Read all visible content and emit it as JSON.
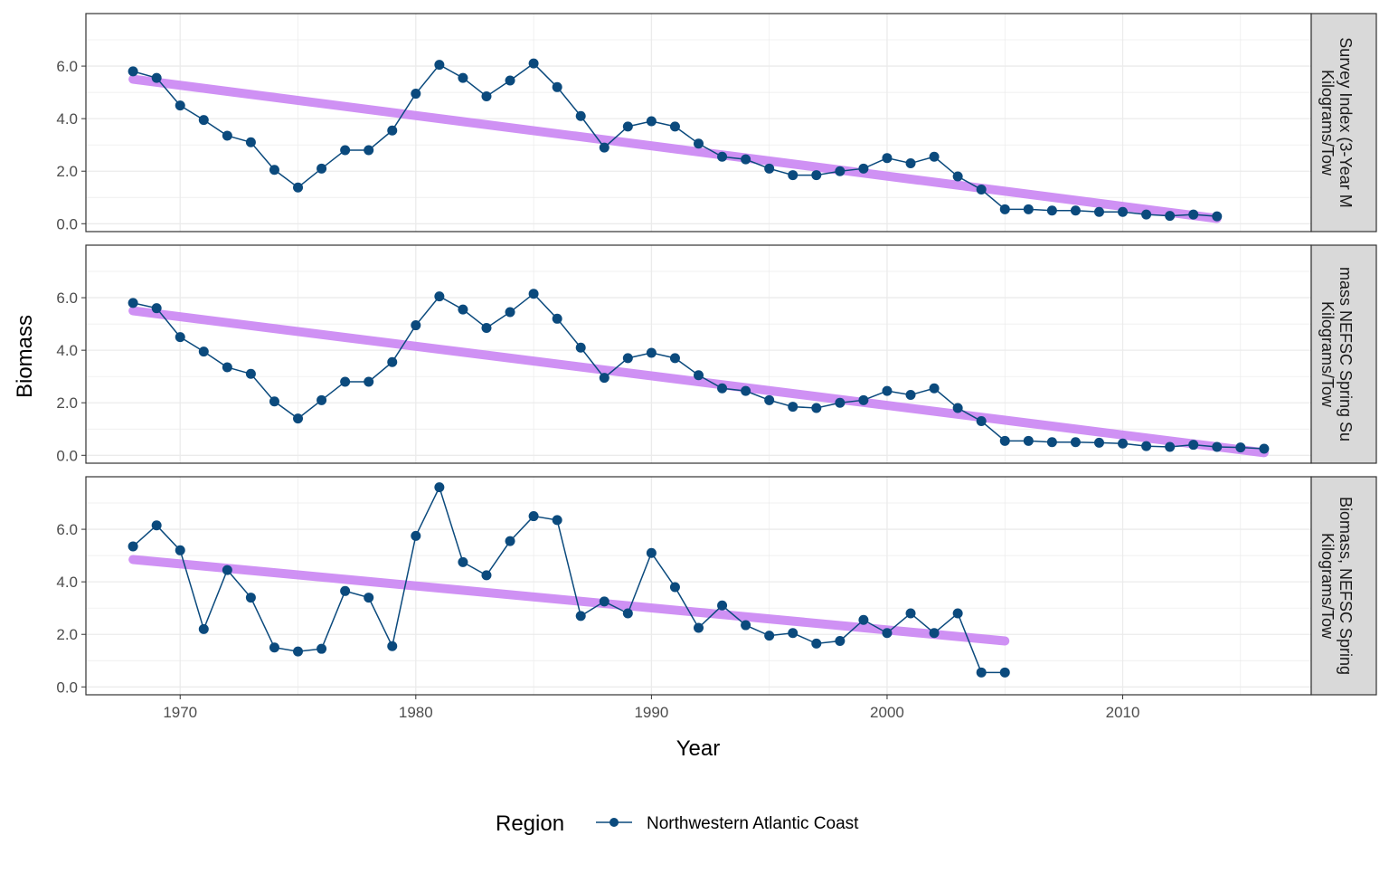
{
  "chart_data": {
    "type": "line",
    "xlabel": "Year",
    "ylabel": "Biomass",
    "x_ticks": [
      1970,
      1980,
      1990,
      2000,
      2010
    ],
    "y_ticks": [
      "0.0",
      "2.0",
      "4.0",
      "6.0"
    ],
    "xlim": [
      1966,
      2018
    ],
    "ylim": [
      -0.3,
      8.0
    ],
    "legend": {
      "title": "Region",
      "entries": [
        "Northwestern Atlantic Coast"
      ],
      "position": "bottom"
    },
    "colors": {
      "series": "#0b4a7d",
      "trend": "#cc88f4",
      "strip_bg": "#d9d9d9",
      "grid": "#ebebeb"
    },
    "panels": [
      {
        "strip_line1": "Survey Index (3-Year M",
        "strip_line2": "Kilograms/Tow",
        "series": [
          {
            "name": "Northwestern Atlantic Coast",
            "x": [
              1968,
              1969,
              1970,
              1971,
              1972,
              1973,
              1974,
              1975,
              1976,
              1977,
              1978,
              1979,
              1980,
              1981,
              1982,
              1983,
              1984,
              1985,
              1986,
              1987,
              1988,
              1989,
              1990,
              1991,
              1992,
              1993,
              1994,
              1995,
              1996,
              1997,
              1998,
              1999,
              2000,
              2001,
              2002,
              2003,
              2004,
              2005,
              2006,
              2007,
              2008,
              2009,
              2010,
              2011,
              2012,
              2013,
              2014
            ],
            "y": [
              5.8,
              5.55,
              4.5,
              3.95,
              3.35,
              3.1,
              2.05,
              1.38,
              2.1,
              2.8,
              2.8,
              3.55,
              4.95,
              6.05,
              5.55,
              4.85,
              5.45,
              6.1,
              5.2,
              4.1,
              2.9,
              3.7,
              3.9,
              3.7,
              3.05,
              2.55,
              2.45,
              2.1,
              1.85,
              1.85,
              2.0,
              2.1,
              2.5,
              2.3,
              2.55,
              1.8,
              1.3,
              0.55,
              0.55,
              0.5,
              0.5,
              0.45,
              0.45,
              0.35,
              0.3,
              0.35,
              0.28
            ]
          }
        ],
        "trend": {
          "x": [
            1968,
            2014
          ],
          "y": [
            5.5,
            0.2
          ]
        }
      },
      {
        "strip_line1": "mass NEFSC Spring Su",
        "strip_line2": "Kilograms/Tow",
        "series": [
          {
            "name": "Northwestern Atlantic Coast",
            "x": [
              1968,
              1969,
              1970,
              1971,
              1972,
              1973,
              1974,
              1975,
              1976,
              1977,
              1978,
              1979,
              1980,
              1981,
              1982,
              1983,
              1984,
              1985,
              1986,
              1987,
              1988,
              1989,
              1990,
              1991,
              1992,
              1993,
              1994,
              1995,
              1996,
              1997,
              1998,
              1999,
              2000,
              2001,
              2002,
              2003,
              2004,
              2005,
              2006,
              2007,
              2008,
              2009,
              2010,
              2011,
              2012,
              2013,
              2014,
              2015,
              2016
            ],
            "y": [
              5.8,
              5.6,
              4.5,
              3.95,
              3.35,
              3.1,
              2.05,
              1.4,
              2.1,
              2.8,
              2.8,
              3.55,
              4.95,
              6.05,
              5.55,
              4.85,
              5.45,
              6.15,
              5.2,
              4.1,
              2.95,
              3.7,
              3.9,
              3.7,
              3.05,
              2.55,
              2.45,
              2.1,
              1.85,
              1.8,
              2.0,
              2.1,
              2.45,
              2.3,
              2.55,
              1.8,
              1.3,
              0.55,
              0.55,
              0.5,
              0.5,
              0.48,
              0.45,
              0.35,
              0.32,
              0.4,
              0.32,
              0.3,
              0.25
            ]
          }
        ],
        "trend": {
          "x": [
            1968,
            2016
          ],
          "y": [
            5.5,
            0.1
          ]
        }
      },
      {
        "strip_line1": "Biomass, NEFSC Spring",
        "strip_line2": "Kilograms/Tow",
        "series": [
          {
            "name": "Northwestern Atlantic Coast",
            "x": [
              1968,
              1969,
              1970,
              1971,
              1972,
              1973,
              1974,
              1975,
              1976,
              1977,
              1978,
              1979,
              1980,
              1981,
              1982,
              1983,
              1984,
              1985,
              1986,
              1987,
              1988,
              1989,
              1990,
              1991,
              1992,
              1993,
              1994,
              1995,
              1996,
              1997,
              1998,
              1999,
              2000,
              2001,
              2002,
              2003,
              2004,
              2005
            ],
            "y": [
              5.35,
              6.15,
              5.2,
              2.2,
              4.45,
              3.4,
              1.5,
              1.35,
              1.45,
              3.65,
              3.4,
              1.55,
              5.75,
              7.6,
              4.75,
              4.25,
              5.55,
              6.5,
              6.35,
              2.7,
              3.25,
              2.8,
              5.1,
              3.8,
              2.25,
              3.1,
              2.35,
              1.95,
              2.05,
              1.65,
              1.75,
              2.55,
              2.05,
              2.8,
              2.05,
              2.8,
              0.55,
              0.55
            ]
          }
        ],
        "trend": {
          "x": [
            1968,
            2005
          ],
          "y": [
            4.85,
            1.75
          ]
        }
      }
    ]
  }
}
